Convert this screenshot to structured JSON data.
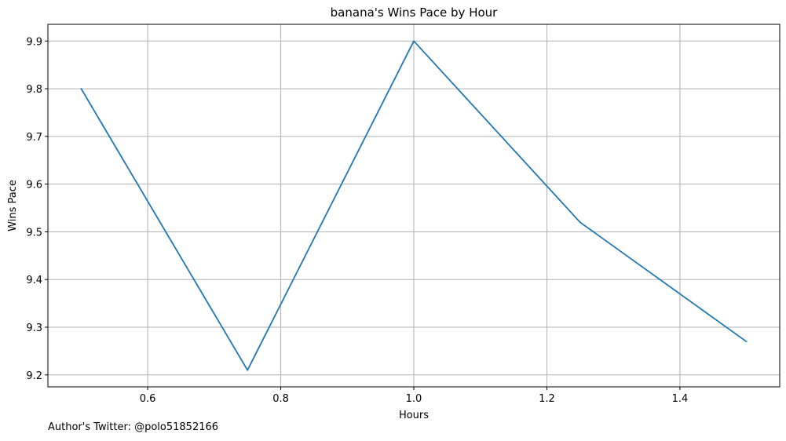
{
  "chart_data": {
    "type": "line",
    "title": "banana's Wins Pace by Hour",
    "xlabel": "Hours",
    "ylabel": "Wins Pace",
    "x": [
      0.5,
      0.75,
      1.0,
      1.25,
      1.5
    ],
    "series": [
      {
        "values": [
          9.8,
          9.21,
          9.9,
          9.52,
          9.27
        ]
      }
    ],
    "xlim": [
      0.45,
      1.55
    ],
    "ylim": [
      9.175,
      9.935
    ],
    "xticks": [
      "0.6",
      "0.8",
      "1.0",
      "1.2",
      "1.4"
    ],
    "yticks": [
      "9.2",
      "9.3",
      "9.4",
      "9.5",
      "9.6",
      "9.7",
      "9.8",
      "9.9"
    ],
    "grid": true,
    "line_color": "#1f77b4"
  },
  "footer": {
    "text": "Author's Twitter: @polo51852166"
  }
}
